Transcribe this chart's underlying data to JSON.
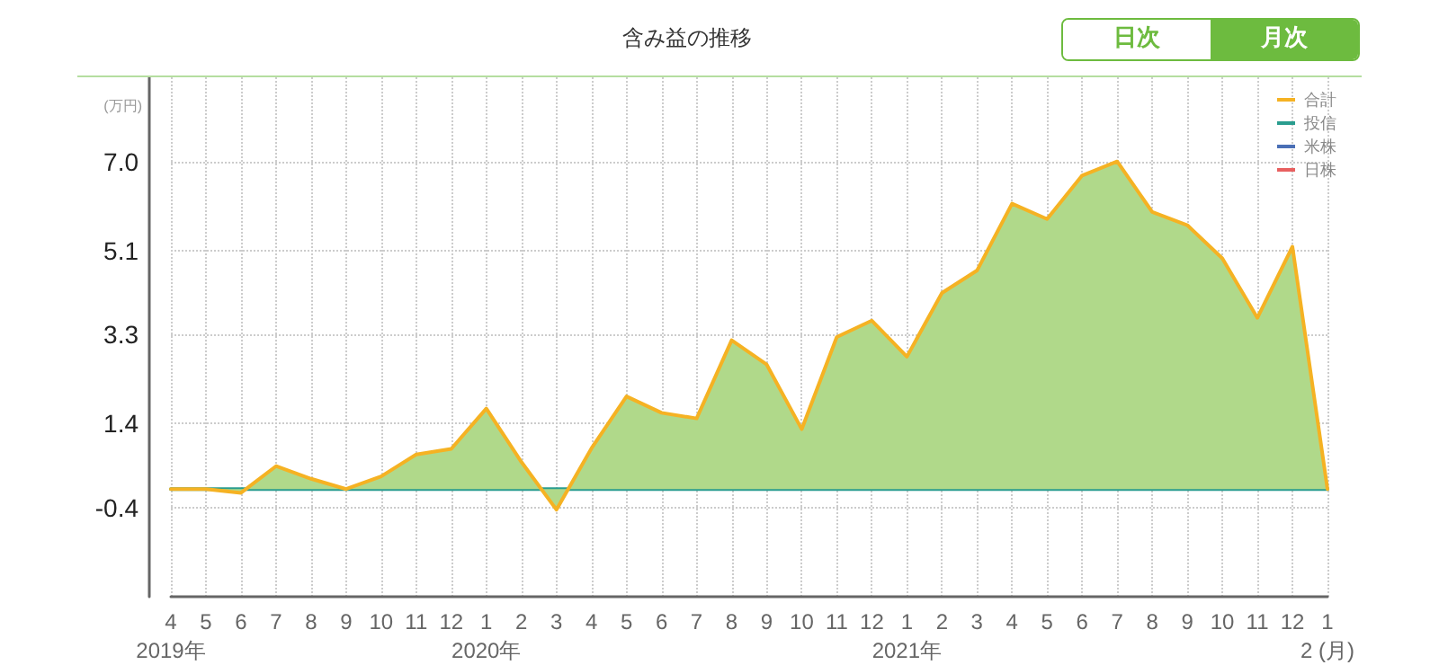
{
  "chart_data": {
    "type": "line",
    "title": "含み益の推移",
    "ylabel": "(万円)",
    "annotations": [
      "日次",
      "月次"
    ],
    "categories": [
      "4\n2019年",
      "5",
      "6",
      "7",
      "8",
      "9",
      "10",
      "11",
      "12",
      "1\n2020年",
      "2",
      "3",
      "4",
      "5",
      "6",
      "7",
      "8",
      "9",
      "10",
      "11",
      "12",
      "1\n2021年",
      "2",
      "3",
      "4",
      "5",
      "6",
      "7",
      "8",
      "9",
      "10",
      "11",
      "12",
      "1\n2 (月)"
    ],
    "series": [
      {
        "name": "合計",
        "type": "area",
        "color": "#f5b223",
        "values": [
          0,
          0,
          -0.08,
          0.49,
          0.22,
          0,
          0.27,
          0.74,
          0.86,
          1.72,
          0.58,
          -0.44,
          0.87,
          1.98,
          1.63,
          1.51,
          3.18,
          2.66,
          1.28,
          3.25,
          3.6,
          2.83,
          4.19,
          4.67,
          6.1,
          5.77,
          6.7,
          7.0,
          5.92,
          5.64,
          4.93,
          3.66,
          5.18,
          0
        ]
      },
      {
        "name": "投信",
        "color": "#2a9d8f",
        "values": [
          0,
          0,
          0,
          0,
          0,
          0,
          0,
          0,
          0,
          0,
          0,
          0,
          0,
          0,
          0,
          0,
          0,
          0,
          0,
          0,
          0,
          0,
          0,
          0,
          0,
          0,
          0,
          0,
          0,
          0,
          0,
          0,
          0,
          0
        ]
      },
      {
        "name": "米株",
        "color": "#4a6fb5",
        "values": [
          null,
          null,
          null,
          null,
          null,
          null,
          null,
          null,
          null,
          null,
          null,
          null,
          null,
          null,
          null,
          null,
          null,
          null,
          null,
          null,
          null,
          null,
          null,
          null,
          null,
          null,
          null,
          null,
          null,
          null,
          null,
          null,
          null,
          null
        ]
      },
      {
        "name": "日株",
        "color": "#e86060",
        "values": [
          null,
          null,
          null,
          null,
          null,
          null,
          null,
          null,
          null,
          null,
          null,
          null,
          null,
          null,
          null,
          null,
          null,
          null,
          null,
          null,
          null,
          null,
          null,
          null,
          null,
          null,
          null,
          null,
          null,
          null,
          null,
          null,
          null,
          null
        ]
      }
    ],
    "ylim": [
      -2.3,
      8.8
    ],
    "yticks": [
      -0.4,
      1.4,
      3.3,
      5.1,
      {
        "value": 7,
        "label": "7.0"
      }
    ],
    "grid": true,
    "legend": "top right",
    "marker": "none",
    "line_style": "solid"
  }
}
